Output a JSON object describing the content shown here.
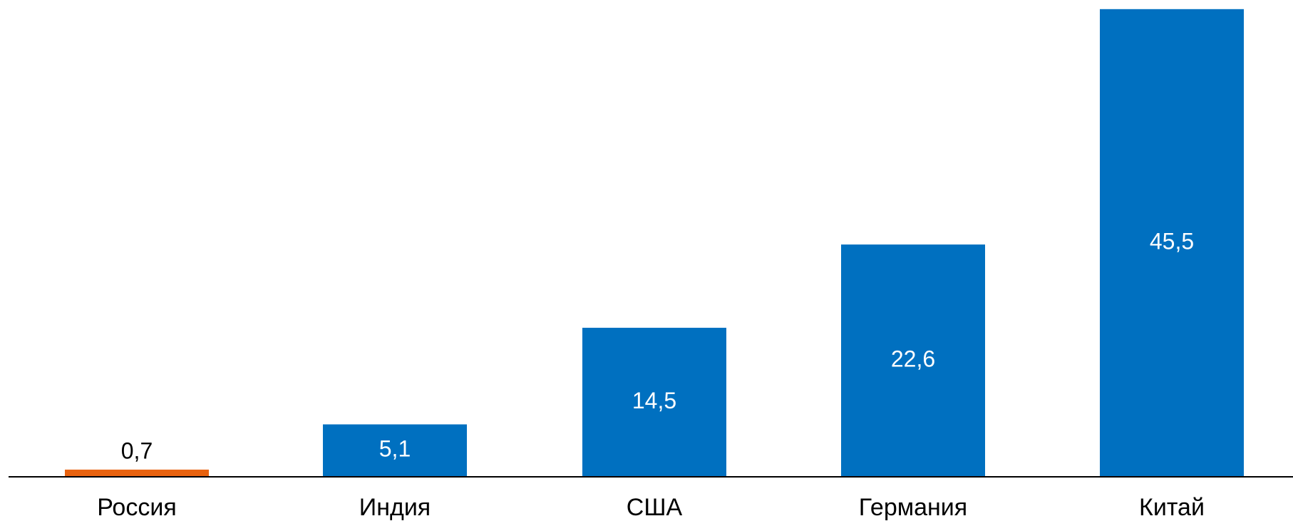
{
  "chart_data": {
    "type": "bar",
    "categories": [
      "Россия",
      "Индия",
      "США",
      "Германия",
      "Китай"
    ],
    "values": [
      0.7,
      5.1,
      14.5,
      22.6,
      45.5
    ],
    "value_labels": [
      "0,7",
      "5,1",
      "14,5",
      "22,6",
      "45,5"
    ],
    "colors": [
      "#e8620f",
      "#0070c0",
      "#0070c0",
      "#0070c0",
      "#0070c0"
    ],
    "ylim": [
      0,
      46
    ]
  }
}
